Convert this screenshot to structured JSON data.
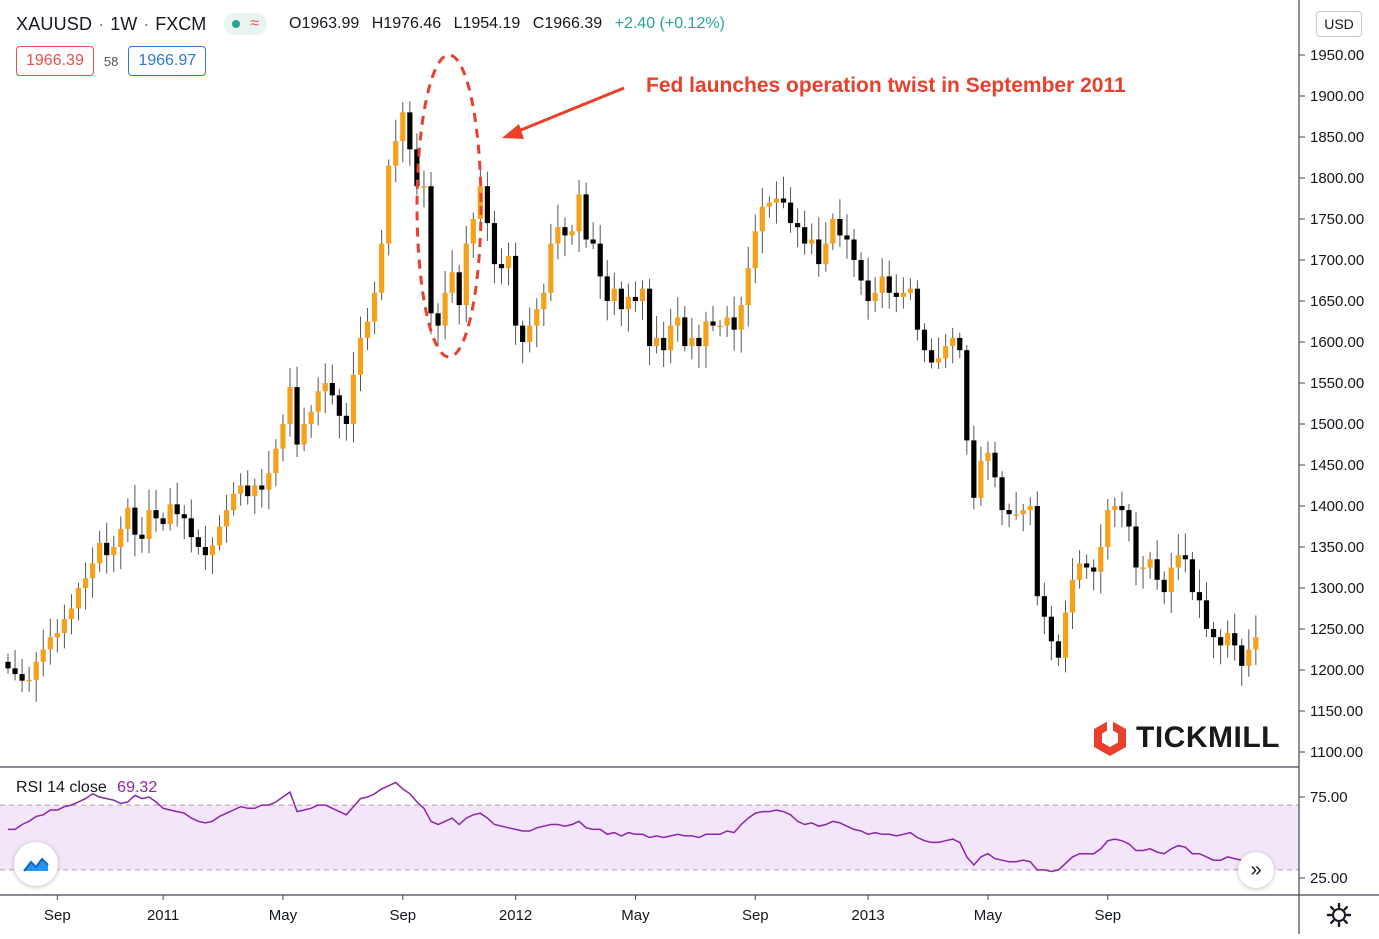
{
  "header": {
    "symbol": "XAUUSD",
    "interval": "1W",
    "exchange": "FXCM",
    "separator": "·",
    "wave_icon": "≈",
    "open": "O1963.99",
    "high": "H1976.46",
    "low": "L1954.19",
    "close": "C1966.39",
    "change": "+2.40 (+0.12%)",
    "bid": "1966.39",
    "spread": "58",
    "ask": "1966.97",
    "currency": "USD"
  },
  "annotation": {
    "text": "Fed launches operation twist in September 2011"
  },
  "logo": {
    "text": "TICKMILL"
  },
  "rsi": {
    "label": "RSI 14 close",
    "value": "69.32"
  },
  "icons": [
    "tradingview-logo-icon",
    "scroll-right-icon",
    "gear-icon"
  ],
  "colors": {
    "up": "#f7a11a",
    "down": "#000000",
    "rsi_line": "#8e24aa",
    "rsi_band": "#f3e5fa",
    "annotation": "#e8402a",
    "bid": "#e8504a",
    "ask": "#2979d6"
  },
  "chart_data": [
    {
      "type": "candlestick",
      "title": "",
      "ylabel": "USD",
      "ylim": [
        1100,
        2000
      ],
      "y_ticks": [
        1100,
        1150,
        1200,
        1250,
        1300,
        1350,
        1400,
        1450,
        1500,
        1550,
        1600,
        1650,
        1700,
        1750,
        1800,
        1850,
        1900,
        1950
      ],
      "y_tick_labels": [
        "1100.00",
        "1150.00",
        "1200.00",
        "1250.00",
        "1300.00",
        "1350.00",
        "1400.00",
        "1450.00",
        "1500.00",
        "1550.00",
        "1600.00",
        "1650.00",
        "1700.00",
        "1750.00",
        "1800.00",
        "1850.00",
        "1900.00",
        "1950.00"
      ],
      "x_ticks": [
        {
          "label": "Sep",
          "week": 7
        },
        {
          "label": "2011",
          "week": 22
        },
        {
          "label": "May",
          "week": 39
        },
        {
          "label": "Sep",
          "week": 56
        },
        {
          "label": "2012",
          "week": 72
        },
        {
          "label": "May",
          "week": 89
        },
        {
          "label": "Sep",
          "week": 106
        },
        {
          "label": "2013",
          "week": 122
        },
        {
          "label": "May",
          "week": 139
        },
        {
          "label": "Sep",
          "week": 156
        }
      ],
      "grid": false,
      "series": [
        {
          "close": [
            1202,
            1195,
            1187,
            1188,
            1210,
            1225,
            1240,
            1245,
            1262,
            1275,
            1300,
            1312,
            1330,
            1355,
            1340,
            1350,
            1372,
            1398,
            1365,
            1360,
            1395,
            1385,
            1378,
            1402,
            1390,
            1385,
            1362,
            1350,
            1340,
            1352,
            1375,
            1395,
            1415,
            1425,
            1412,
            1425,
            1420,
            1440,
            1470,
            1500,
            1545,
            1475,
            1500,
            1515,
            1540,
            1550,
            1535,
            1510,
            1500,
            1560,
            1605,
            1625,
            1660,
            1720,
            1815,
            1845,
            1880,
            1835,
            1790,
            1790,
            1635,
            1620,
            1660,
            1685,
            1645,
            1720,
            1750,
            1790,
            1745,
            1695,
            1690,
            1705,
            1620,
            1600,
            1620,
            1640,
            1660,
            1720,
            1740,
            1730,
            1735,
            1780,
            1725,
            1720,
            1680,
            1650,
            1665,
            1640,
            1655,
            1650,
            1665,
            1595,
            1605,
            1590,
            1620,
            1630,
            1595,
            1605,
            1595,
            1625,
            1620,
            1620,
            1630,
            1615,
            1645,
            1690,
            1735,
            1765,
            1770,
            1775,
            1770,
            1745,
            1740,
            1720,
            1725,
            1695,
            1720,
            1750,
            1730,
            1725,
            1700,
            1675,
            1650,
            1660,
            1680,
            1660,
            1655,
            1660,
            1665,
            1615,
            1590,
            1575,
            1580,
            1595,
            1605,
            1590,
            1480,
            1410,
            1455,
            1465,
            1435,
            1395,
            1390,
            1390,
            1395,
            1400,
            1290,
            1265,
            1235,
            1215,
            1270,
            1310,
            1330,
            1325,
            1320,
            1350,
            1395,
            1400,
            1395,
            1375,
            1325,
            1325,
            1335,
            1310,
            1295,
            1325,
            1340,
            1335,
            1295,
            1285,
            1250,
            1240,
            1230,
            1245,
            1230,
            1205,
            1225,
            1240
          ],
          "name": "XAUUSD"
        }
      ]
    },
    {
      "type": "line",
      "title": "",
      "ylim": [
        5,
        95
      ],
      "y_ticks": [
        25,
        75
      ],
      "y_tick_labels": [
        "25.00",
        "75.00"
      ],
      "band": [
        30,
        70
      ],
      "series": [
        {
          "name": "",
          "values": [
            55,
            55,
            58,
            60,
            63,
            64,
            67,
            67,
            69,
            70,
            72,
            74,
            77,
            75,
            74,
            73,
            71,
            72,
            76,
            74,
            75,
            72,
            68,
            67,
            66,
            65,
            62,
            60,
            59,
            60,
            63,
            65,
            67,
            69,
            68,
            68,
            70,
            70,
            72,
            75,
            78,
            66,
            67,
            68,
            70,
            70,
            68,
            66,
            64,
            69,
            74,
            75,
            77,
            80,
            82,
            84,
            80,
            77,
            72,
            68,
            60,
            58,
            60,
            62,
            58,
            62,
            64,
            65,
            62,
            58,
            57,
            56,
            55,
            54,
            54,
            56,
            57,
            58,
            58,
            57,
            58,
            60,
            56,
            55,
            55,
            52,
            53,
            51,
            53,
            52,
            52,
            50,
            51,
            50,
            51,
            52,
            51,
            51,
            50,
            52,
            52,
            52,
            54,
            53,
            58,
            62,
            65,
            66,
            66,
            67,
            66,
            64,
            60,
            58,
            59,
            57,
            58,
            60,
            59,
            57,
            55,
            54,
            52,
            53,
            52,
            52,
            51,
            52,
            53,
            50,
            48,
            47,
            47,
            48,
            49,
            47,
            38,
            33,
            38,
            40,
            37,
            36,
            35,
            35,
            36,
            35,
            30,
            30,
            29,
            30,
            34,
            38,
            40,
            40,
            40,
            43,
            48,
            49,
            48,
            46,
            42,
            42,
            43,
            41,
            40,
            43,
            45,
            44,
            40,
            40,
            38,
            36,
            36,
            38,
            37,
            36,
            38,
            40
          ],
          "threshold_upper": 70,
          "threshold_lower": 30
        }
      ]
    }
  ]
}
